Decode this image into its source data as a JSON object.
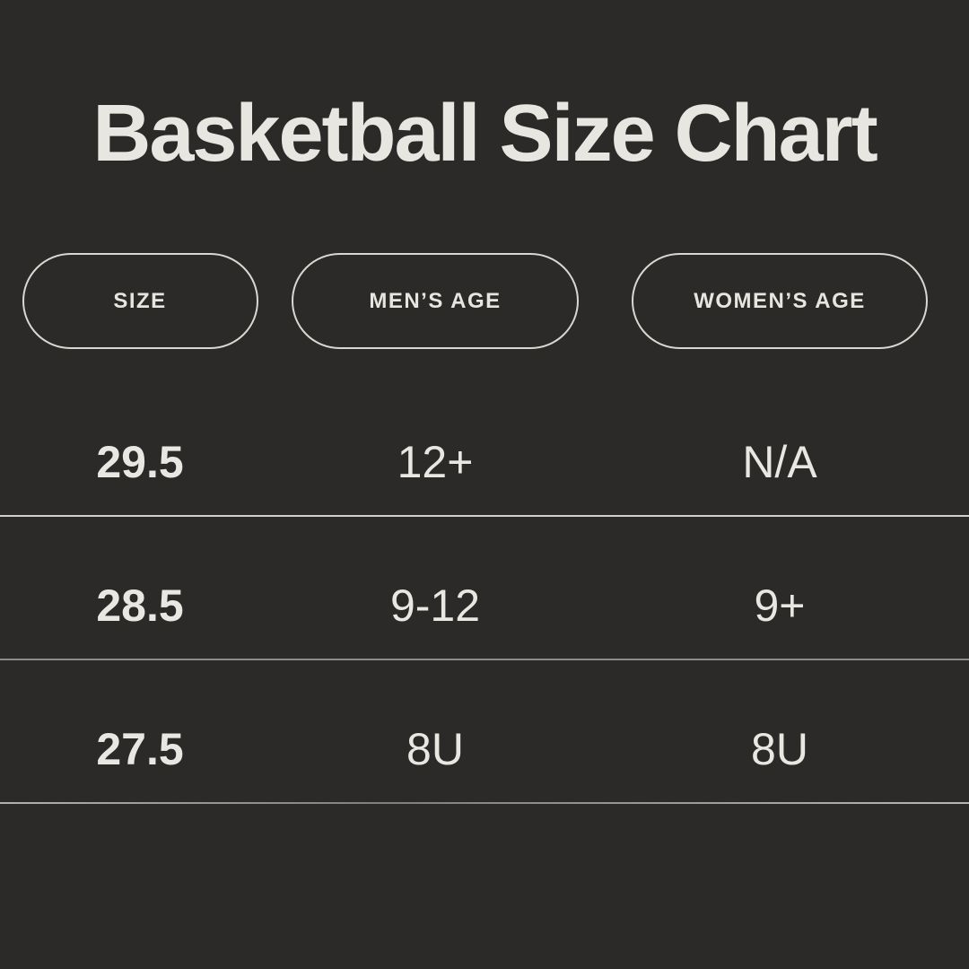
{
  "title": "Basketball Size Chart",
  "colors": {
    "background": "#2b2a28",
    "text": "#e9e7e1",
    "pill_border": "#d9d7d1",
    "divider_light": "#d2d0ca",
    "divider_gray": "#8e8c88"
  },
  "table": {
    "columns": [
      {
        "label": "SIZE"
      },
      {
        "label": "MEN’S AGE"
      },
      {
        "label": "WOMEN’S AGE"
      }
    ],
    "rows": [
      {
        "size": "29.5",
        "mens_age": "12+",
        "womens_age": "N/A"
      },
      {
        "size": "28.5",
        "mens_age": "9-12",
        "womens_age": "9+"
      },
      {
        "size": "27.5",
        "mens_age": "8U",
        "womens_age": "8U"
      }
    ]
  },
  "chart_data": {
    "type": "table",
    "title": "Basketball Size Chart",
    "columns": [
      "SIZE",
      "MEN’S AGE",
      "WOMEN’S AGE"
    ],
    "rows": [
      [
        "29.5",
        "12+",
        "N/A"
      ],
      [
        "28.5",
        "9-12",
        "9+"
      ],
      [
        "27.5",
        "8U",
        "8U"
      ]
    ]
  }
}
